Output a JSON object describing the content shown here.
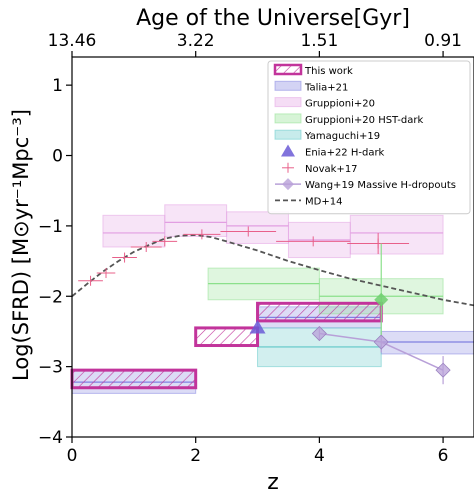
{
  "chart_data": {
    "type": "scatter",
    "top_axis_label": "Age of the Universe[Gyr]",
    "top_ticks": [
      {
        "label": "13.46",
        "z": 0
      },
      {
        "label": "3.22",
        "z": 2
      },
      {
        "label": "1.51",
        "z": 4
      },
      {
        "label": "0.91",
        "z": 6
      }
    ],
    "xlabel": "z",
    "ylabel": "Log(SFRD) [M⊙yr⁻¹Mpc⁻³]",
    "xlim": [
      0,
      6.5
    ],
    "ylim": [
      -4,
      1.4
    ],
    "xticks": [
      0,
      2,
      4,
      6
    ],
    "yticks": [
      1,
      0,
      -1,
      -2,
      -3,
      -4
    ],
    "ytick_labels": [
      "1",
      "0",
      "−1",
      "−2",
      "−3",
      "−4"
    ],
    "xtick_labels": [
      "0",
      "2",
      "4",
      "6"
    ],
    "grid": false,
    "legend_position": "top-right",
    "colors": {
      "this_work": "#c2349b",
      "talia": "#8080e0",
      "gruppioni": "#e29ee2",
      "gruppioni_hst": "#8be08b",
      "yamaguchi": "#5ec7c7",
      "enia": "#6b5bd6",
      "novak": "#e8608a",
      "wang": "#b8a0d8",
      "md14": "#555555"
    },
    "series": [
      {
        "name": "This work",
        "kind": "box_hatched",
        "boxes": [
          {
            "x0": 0,
            "x1": 2,
            "y0": -3.3,
            "y1": -3.05
          },
          {
            "x0": 2,
            "x1": 3,
            "y0": -2.7,
            "y1": -2.45
          },
          {
            "x0": 3,
            "x1": 5,
            "y0": -2.35,
            "y1": -2.1
          }
        ]
      },
      {
        "name": "Talia+21",
        "kind": "box",
        "boxes": [
          {
            "x0": 0,
            "x1": 2,
            "y0": -3.38,
            "y1": -3.05,
            "mid": -3.22
          },
          {
            "x0": 3.0,
            "x1": 5.0,
            "y0": -2.45,
            "y1": -2.15,
            "mid": -2.3
          },
          {
            "x0": 5.0,
            "x1": 6.5,
            "y0": -2.82,
            "y1": -2.5,
            "mid": -2.65
          }
        ]
      },
      {
        "name": "Gruppioni+20",
        "kind": "box",
        "boxes": [
          {
            "x0": 0.5,
            "x1": 1.5,
            "y0": -1.3,
            "y1": -0.85,
            "mid": -1.1
          },
          {
            "x0": 1.5,
            "x1": 2.5,
            "y0": -1.15,
            "y1": -0.7,
            "mid": -0.95
          },
          {
            "x0": 2.5,
            "x1": 3.5,
            "y0": -1.25,
            "y1": -0.8,
            "mid": -1.0
          },
          {
            "x0": 3.5,
            "x1": 4.5,
            "y0": -1.45,
            "y1": -0.95,
            "mid": -1.2
          },
          {
            "x0": 4.5,
            "x1": 6.0,
            "y0": -1.4,
            "y1": -0.85,
            "mid": -1.1
          }
        ]
      },
      {
        "name": "Gruppioni+20 HST-dark",
        "kind": "box",
        "boxes": [
          {
            "x0": 2.2,
            "x1": 4.0,
            "y0": -2.05,
            "y1": -1.6,
            "mid": -1.82
          },
          {
            "x0": 4.0,
            "x1": 6.0,
            "y0": -2.25,
            "y1": -1.75,
            "mid": -2.0
          }
        ]
      },
      {
        "name": "Yamaguchi+19",
        "kind": "box",
        "boxes": [
          {
            "x0": 3.0,
            "x1": 5.0,
            "y0": -3.0,
            "y1": -2.45,
            "mid": -2.72
          }
        ]
      },
      {
        "name": "Enia+22 H-dark",
        "kind": "triangle",
        "points": [
          {
            "x": 3.0,
            "y": -2.45
          }
        ]
      },
      {
        "name": "Novak+17",
        "kind": "errorbar",
        "points": [
          {
            "x": 0.3,
            "y": -1.78,
            "xerr": 0.2
          },
          {
            "x": 0.55,
            "y": -1.67,
            "xerr": 0.15
          },
          {
            "x": 0.85,
            "y": -1.45,
            "xerr": 0.2
          },
          {
            "x": 1.2,
            "y": -1.3,
            "xerr": 0.25
          },
          {
            "x": 1.5,
            "y": -1.22,
            "xerr": 0.2
          },
          {
            "x": 2.1,
            "y": -1.12,
            "xerr": 0.3
          },
          {
            "x": 2.85,
            "y": -1.08,
            "xerr": 0.45
          },
          {
            "x": 3.9,
            "y": -1.22,
            "xerr": 0.6
          },
          {
            "x": 4.95,
            "y": -1.25,
            "xerr": 0.5,
            "yerr": 0.15
          }
        ]
      },
      {
        "name": "Wang+19 Massive H-dropouts",
        "kind": "diamond_line",
        "points": [
          {
            "x": 4.0,
            "y": -2.53,
            "yerr": 0.1
          },
          {
            "x": 5.0,
            "y": -2.65,
            "yerr": 0.15
          },
          {
            "x": 6.0,
            "y": -3.05,
            "yerr": 0.2
          }
        ]
      },
      {
        "name": "MD+14",
        "kind": "dashed",
        "points": [
          {
            "x": 0,
            "y": -2.0
          },
          {
            "x": 0.25,
            "y": -1.82
          },
          {
            "x": 0.5,
            "y": -1.65
          },
          {
            "x": 0.75,
            "y": -1.5
          },
          {
            "x": 1.0,
            "y": -1.37
          },
          {
            "x": 1.25,
            "y": -1.27
          },
          {
            "x": 1.5,
            "y": -1.18
          },
          {
            "x": 1.75,
            "y": -1.14
          },
          {
            "x": 2.0,
            "y": -1.13
          },
          {
            "x": 2.25,
            "y": -1.16
          },
          {
            "x": 2.5,
            "y": -1.22
          },
          {
            "x": 3.0,
            "y": -1.35
          },
          {
            "x": 3.5,
            "y": -1.5
          },
          {
            "x": 4.0,
            "y": -1.63
          },
          {
            "x": 4.5,
            "y": -1.75
          },
          {
            "x": 5.0,
            "y": -1.85
          },
          {
            "x": 5.5,
            "y": -1.95
          },
          {
            "x": 6.0,
            "y": -2.05
          },
          {
            "x": 6.5,
            "y": -2.13
          }
        ]
      },
      {
        "name": "",
        "kind": "green_diamond",
        "points": [
          {
            "x": 5.0,
            "y": -2.05,
            "yerr_up": 0.8,
            "yerr_down": 0.5
          }
        ]
      }
    ]
  }
}
